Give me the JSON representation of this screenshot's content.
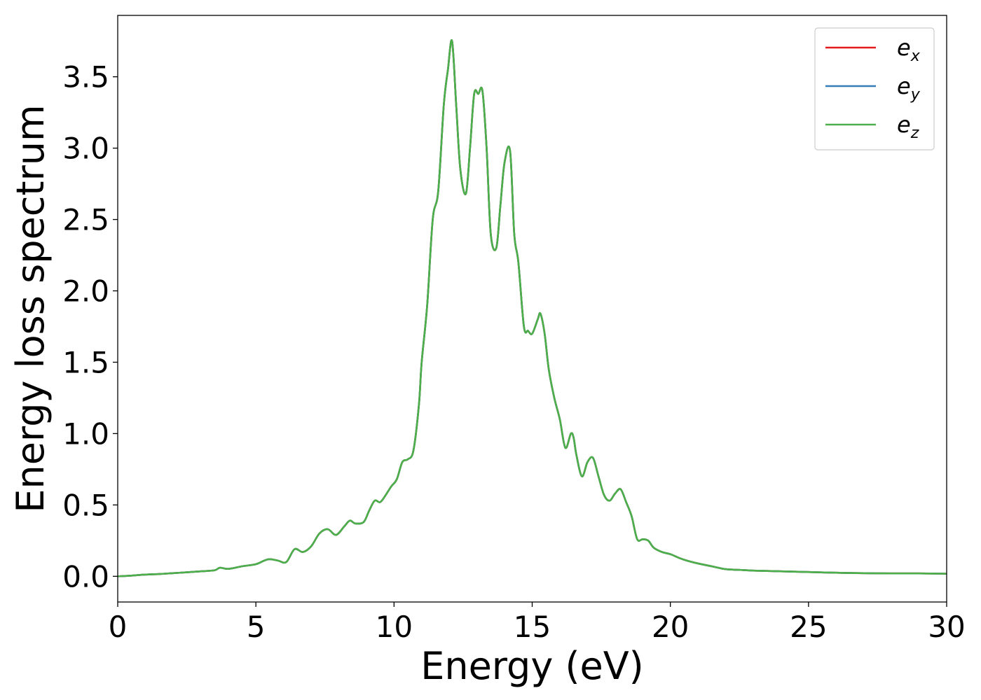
{
  "chart_data": {
    "type": "line",
    "xlabel": "Energy (eV)",
    "ylabel": "Energy loss spectrum",
    "xlim": [
      0,
      30
    ],
    "ylim": [
      -0.18,
      3.93
    ],
    "xticks": [
      0,
      5,
      10,
      15,
      20,
      25,
      30
    ],
    "xtick_labels": [
      "0",
      "5",
      "10",
      "15",
      "20",
      "25",
      "30"
    ],
    "yticks": [
      0.0,
      0.5,
      1.0,
      1.5,
      2.0,
      2.5,
      3.0,
      3.5
    ],
    "ytick_labels": [
      "0.0",
      "0.5",
      "1.0",
      "1.5",
      "2.0",
      "2.5",
      "3.0",
      "3.5"
    ],
    "grid": false,
    "legend_position": "top-right",
    "series": [
      {
        "name": "x",
        "color": "#e41a1c"
      },
      {
        "name": "y",
        "color": "#377eb8"
      },
      {
        "name": "z",
        "color": "#4daf4a"
      }
    ],
    "legend_prefix": "e",
    "x": [
      0,
      0.5,
      1.0,
      1.5,
      2.0,
      2.5,
      3.0,
      3.5,
      3.7,
      4.0,
      4.5,
      5.0,
      5.3,
      5.5,
      5.8,
      6.1,
      6.4,
      6.7,
      7.0,
      7.3,
      7.6,
      7.9,
      8.2,
      8.4,
      8.6,
      8.9,
      9.1,
      9.3,
      9.5,
      9.7,
      9.9,
      10.1,
      10.3,
      10.5,
      10.7,
      10.9,
      11.0,
      11.2,
      11.4,
      11.6,
      11.8,
      11.95,
      12.1,
      12.25,
      12.4,
      12.6,
      12.75,
      12.9,
      13.05,
      13.2,
      13.35,
      13.5,
      13.7,
      13.85,
      14.0,
      14.2,
      14.35,
      14.5,
      14.7,
      14.85,
      15.0,
      15.2,
      15.3,
      15.45,
      15.6,
      15.8,
      16.0,
      16.2,
      16.4,
      16.5,
      16.6,
      16.8,
      17.0,
      17.2,
      17.4,
      17.6,
      17.8,
      18.0,
      18.2,
      18.4,
      18.6,
      18.8,
      19.0,
      19.2,
      19.4,
      19.7,
      20.0,
      20.3,
      20.6,
      21.0,
      21.5,
      22.0,
      22.5,
      23.0,
      24.0,
      25.0,
      26.0,
      27.0,
      28.0,
      29.0,
      30.0
    ],
    "values": [
      0.0,
      0.005,
      0.012,
      0.016,
      0.022,
      0.028,
      0.035,
      0.042,
      0.06,
      0.052,
      0.07,
      0.085,
      0.11,
      0.12,
      0.11,
      0.1,
      0.19,
      0.17,
      0.21,
      0.3,
      0.33,
      0.29,
      0.35,
      0.39,
      0.37,
      0.38,
      0.46,
      0.53,
      0.52,
      0.57,
      0.63,
      0.68,
      0.8,
      0.82,
      0.88,
      1.2,
      1.5,
      1.9,
      2.5,
      2.7,
      3.3,
      3.55,
      3.75,
      3.3,
      2.85,
      2.68,
      3.0,
      3.38,
      3.38,
      3.4,
      3.0,
      2.4,
      2.3,
      2.6,
      2.9,
      2.98,
      2.4,
      2.2,
      1.75,
      1.72,
      1.7,
      1.8,
      1.84,
      1.7,
      1.45,
      1.25,
      1.1,
      0.9,
      1.0,
      0.97,
      0.85,
      0.7,
      0.8,
      0.83,
      0.7,
      0.57,
      0.53,
      0.58,
      0.61,
      0.52,
      0.42,
      0.26,
      0.26,
      0.25,
      0.2,
      0.17,
      0.155,
      0.13,
      0.11,
      0.09,
      0.07,
      0.05,
      0.045,
      0.04,
      0.035,
      0.03,
      0.025,
      0.022,
      0.02,
      0.02,
      0.018
    ]
  }
}
